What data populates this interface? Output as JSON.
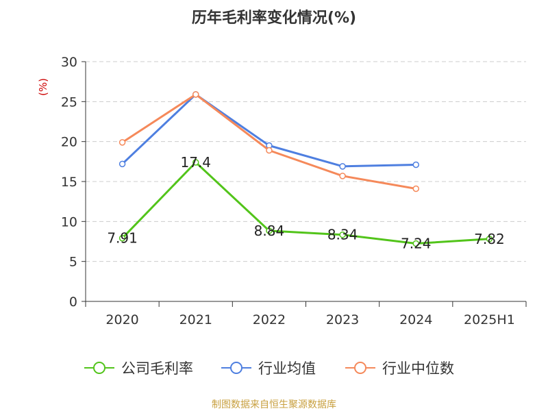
{
  "chart_data": {
    "type": "line",
    "title": "历年毛利率变化情况(%)",
    "ylabel": "(%)",
    "categories": [
      "2020",
      "2021",
      "2022",
      "2023",
      "2024",
      "2025H1"
    ],
    "ylim": [
      0,
      30
    ],
    "yticks": [
      0,
      5,
      10,
      15,
      20,
      25,
      30
    ],
    "grid": true,
    "legend_position": "bottom",
    "series": [
      {
        "name": "公司毛利率",
        "color": "#52c41a",
        "values": [
          7.91,
          17.4,
          8.84,
          8.34,
          7.24,
          7.82
        ],
        "labels": [
          "7.91",
          "17.4",
          "8.84",
          "8.34",
          "7.24",
          "7.82"
        ]
      },
      {
        "name": "行业均值",
        "color": "#4e7fe0",
        "values": [
          17.2,
          25.9,
          19.5,
          16.9,
          17.1,
          null
        ]
      },
      {
        "name": "行业中位数",
        "color": "#f5895a",
        "values": [
          19.9,
          25.9,
          18.9,
          15.7,
          14.1,
          null
        ]
      }
    ]
  },
  "source": "制图数据来自恒生聚源数据库",
  "colors": {
    "axis": "#333333",
    "grid": "#cccccc",
    "ylabel": "#cc0000",
    "source": "#c8a040"
  }
}
